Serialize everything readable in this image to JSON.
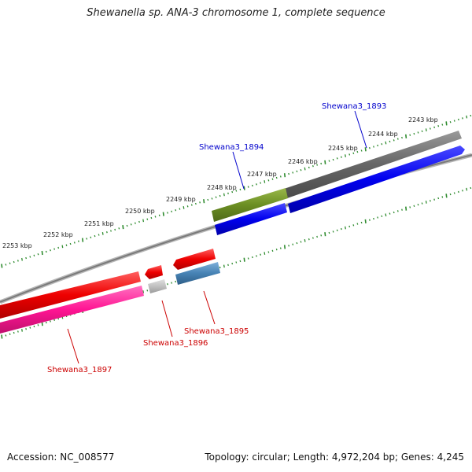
{
  "title": "Shewanella sp. ANA-3 chromosome 1, complete sequence",
  "footer": {
    "accession": "Accession: NC_008577",
    "topology": "Topology: circular; Length: 4,972,204 bp; Genes: 4,245"
  },
  "ruler": {
    "labels": [
      "2243 kbp",
      "2244 kbp",
      "2245 kbp",
      "2246 kbp",
      "2247 kbp",
      "2248 kbp",
      "2249 kbp",
      "2250 kbp",
      "2251 kbp",
      "2252 kbp",
      "2253 kbp"
    ]
  },
  "genes": [
    {
      "name": "Shewana3_1893",
      "strand": "forward",
      "color": "#0000dd",
      "label_color": "#0000cc"
    },
    {
      "name": "Shewana3_1894",
      "strand": "forward",
      "color": "#6b8e23",
      "label_color": "#0000cc"
    },
    {
      "name": "Shewana3_1895",
      "strand": "reverse",
      "color": "#4682b4",
      "label_color": "#cc0000"
    },
    {
      "name": "Shewana3_1896",
      "strand": "reverse",
      "color": "#c0c0c0",
      "label_color": "#cc0000"
    },
    {
      "name": "Shewana3_1897",
      "strand": "reverse",
      "color": "#ff1493",
      "label_color": "#cc0000"
    }
  ],
  "colors": {
    "tick": "#2e8b2e",
    "backbone": "#888888",
    "forward_cds": "#0000ee",
    "reverse_cds": "#ee0000",
    "grey_cds": "#6a6a6a"
  }
}
